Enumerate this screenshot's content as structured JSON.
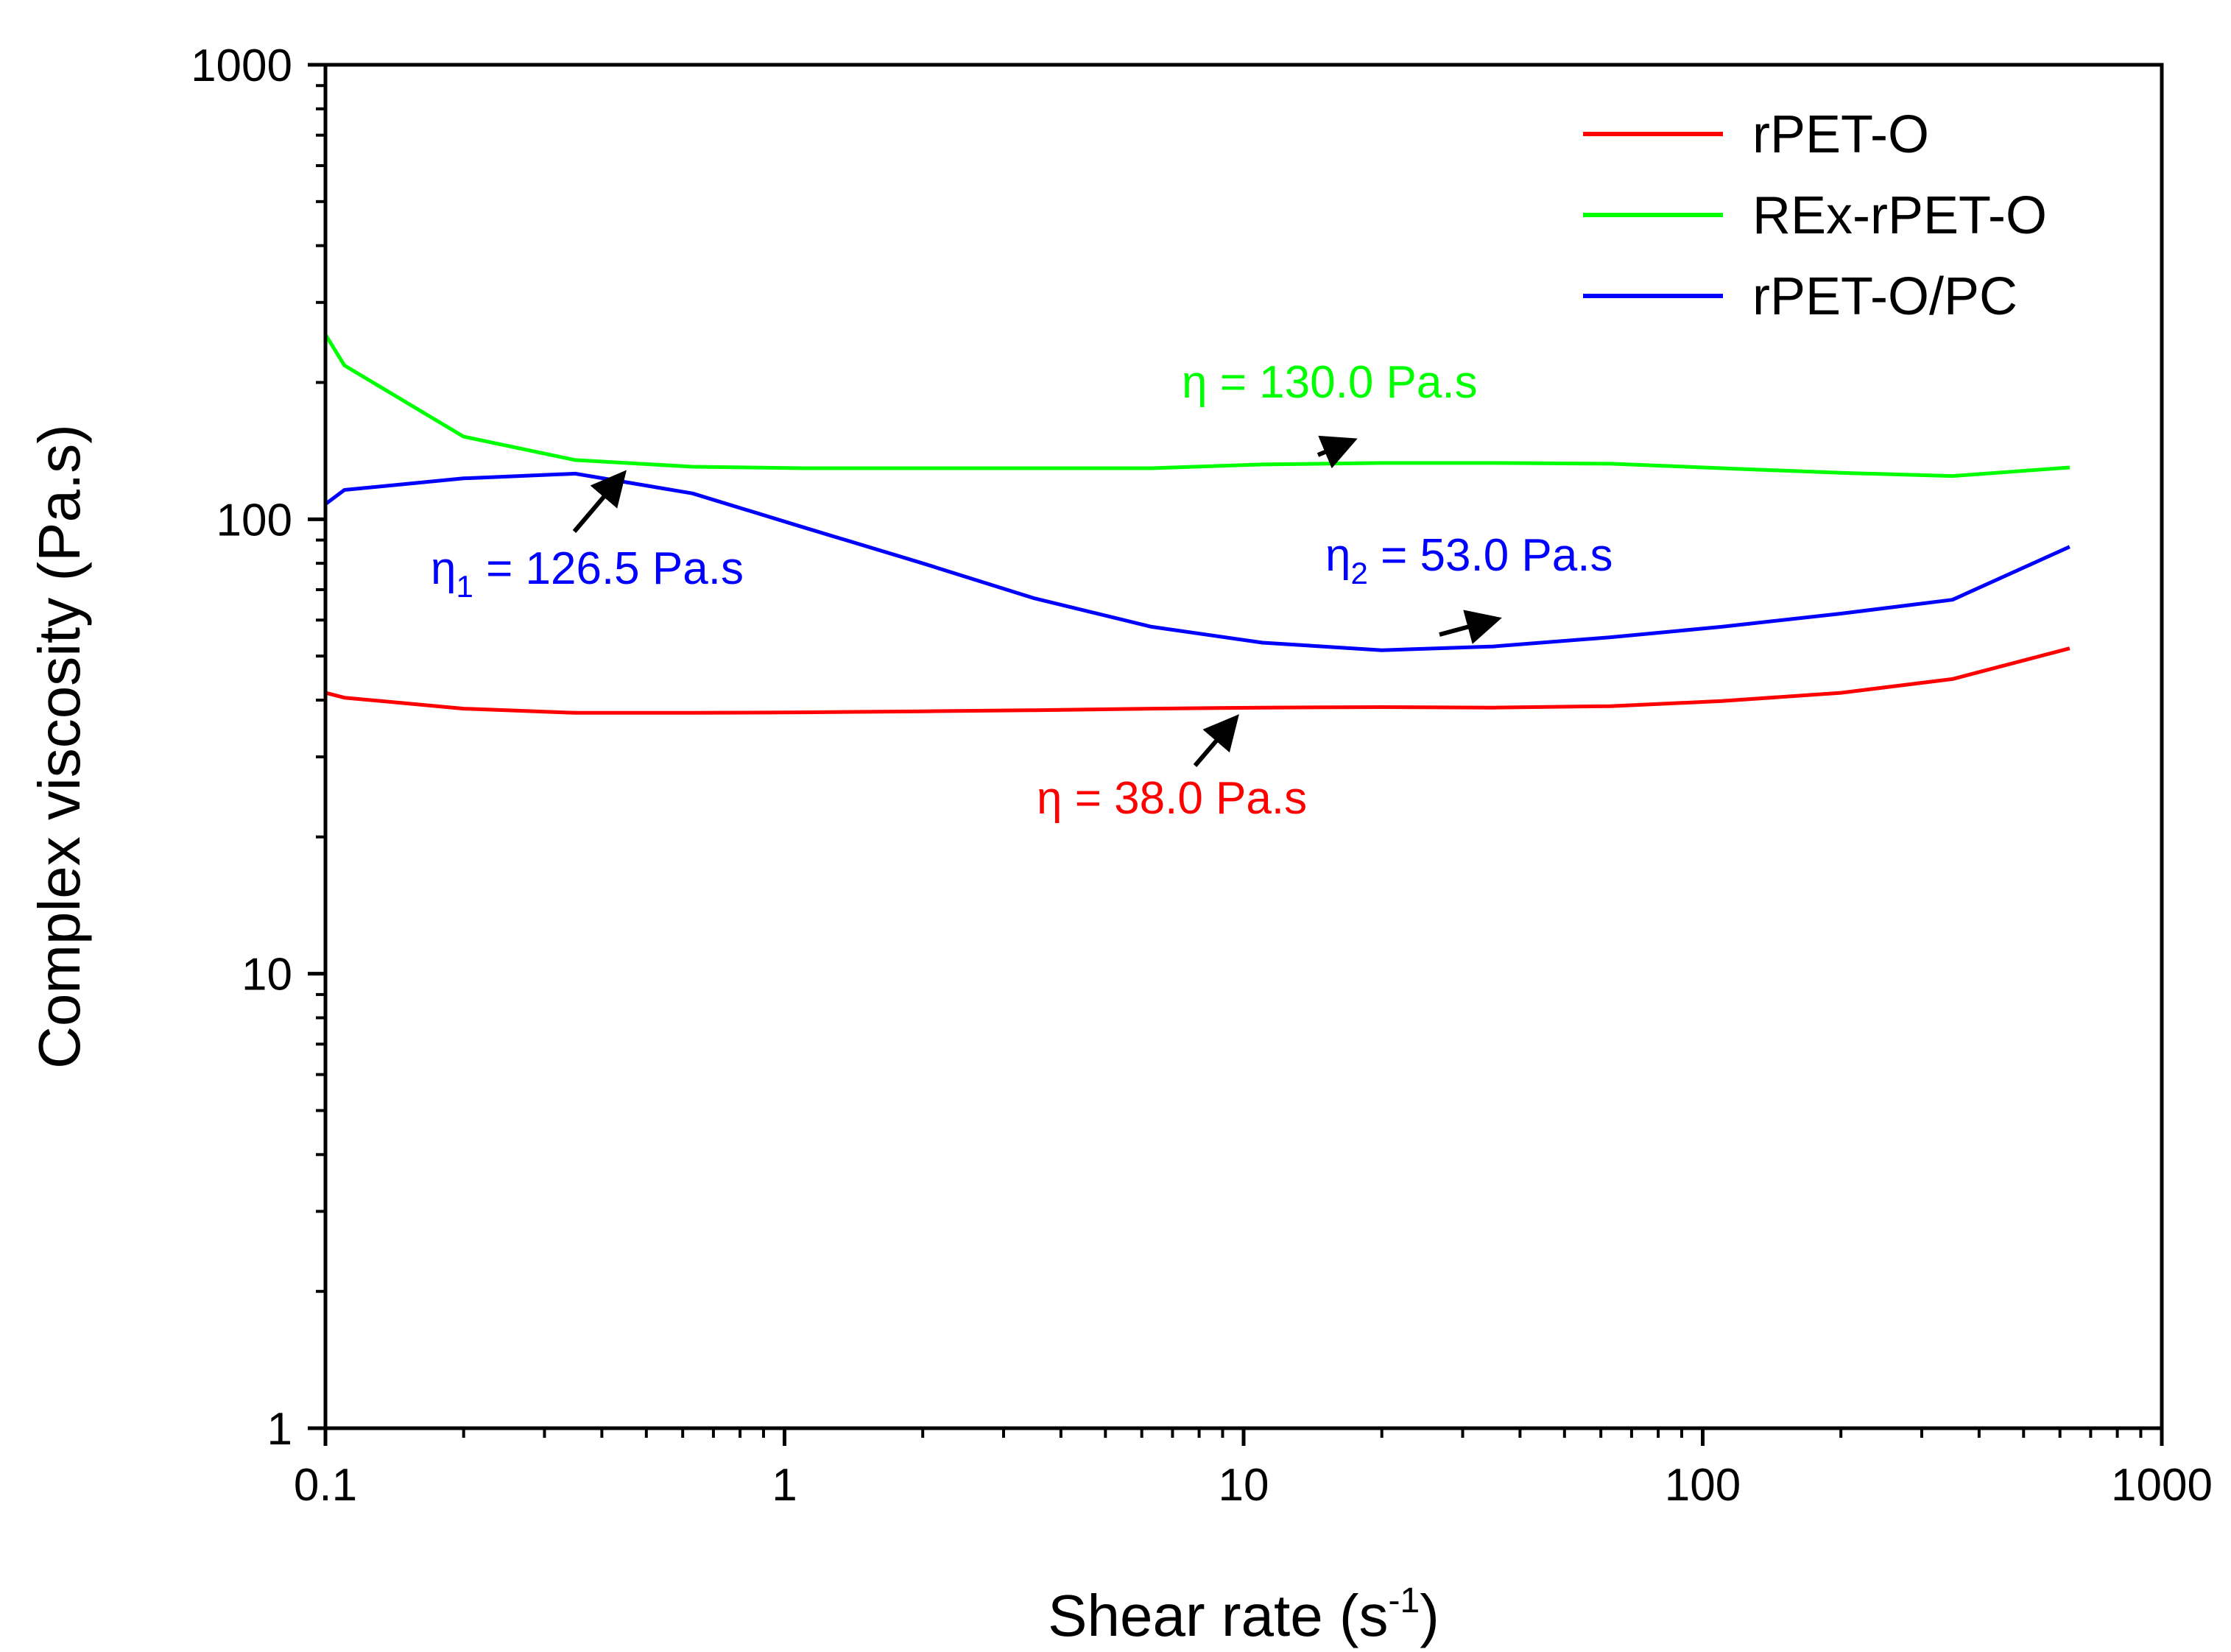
{
  "chart_data": {
    "type": "line",
    "xscale": "log",
    "yscale": "log",
    "xlim": [
      0.1,
      1000
    ],
    "ylim": [
      1,
      1000
    ],
    "xticks": [
      0.1,
      1,
      10,
      100,
      1000
    ],
    "xtick_labels": [
      "0.1",
      "1",
      "10",
      "100",
      "1000"
    ],
    "yticks": [
      1,
      10,
      100,
      1000
    ],
    "ytick_labels": [
      "1",
      "10",
      "100",
      "1000"
    ],
    "xlabel": {
      "main": "Shear rate (s",
      "sup": "-1",
      "end": ")"
    },
    "ylabel": "Complex viscosity (Pa.s)",
    "legend_position": "top-right",
    "series": [
      {
        "name": "rPET-O",
        "color": "#ff0000",
        "x": [
          0.1,
          0.11,
          0.2,
          0.35,
          0.63,
          1.1,
          2,
          3.5,
          6.3,
          11,
          20,
          35,
          63,
          110,
          200,
          350,
          630
        ],
        "y": [
          41.5,
          40.5,
          38.3,
          37.5,
          37.5,
          37.6,
          37.8,
          38.0,
          38.3,
          38.5,
          38.6,
          38.5,
          38.8,
          39.8,
          41.5,
          44.5,
          52.0
        ]
      },
      {
        "name": "REx-rPET-O",
        "color": "#00ff00",
        "x": [
          0.1,
          0.11,
          0.2,
          0.35,
          0.63,
          1.1,
          2,
          3.5,
          6.3,
          11,
          20,
          35,
          63,
          110,
          200,
          350,
          630
        ],
        "y": [
          255,
          218,
          152,
          135,
          130.5,
          129.5,
          129.5,
          129.5,
          129.5,
          132,
          133,
          133,
          132.5,
          129.5,
          126.5,
          124.5,
          130
        ]
      },
      {
        "name": "rPET-O/PC",
        "color": "#0000ff",
        "x": [
          0.1,
          0.11,
          0.2,
          0.35,
          0.63,
          1.1,
          2,
          3.5,
          6.3,
          11,
          20,
          35,
          63,
          110,
          200,
          350,
          630
        ],
        "y": [
          108,
          116,
          123,
          126,
          114,
          96,
          80,
          67,
          58,
          53.5,
          51.5,
          52.5,
          55,
          58,
          62,
          66.5,
          87
        ]
      }
    ],
    "annotations": [
      {
        "id": "eta-green",
        "symbol": "η",
        "sub": "",
        "text": " = 130.0 Pa.s",
        "color": "#00ff00",
        "arrow_to": [
          17,
          148
        ]
      },
      {
        "id": "eta1-blue",
        "symbol": "η",
        "sub": "1",
        "text": " = 126.5 Pa.s",
        "color": "#0000ff",
        "arrow_to": [
          0.44,
          124
        ]
      },
      {
        "id": "eta2-blue",
        "symbol": "η",
        "sub": "2",
        "text": " = 53.0 Pa.s",
        "color": "#0000ff",
        "arrow_to": [
          35,
          60
        ]
      },
      {
        "id": "eta-red",
        "symbol": "η",
        "sub": "",
        "text": " = 38.0 Pa.s",
        "color": "#ff0000",
        "arrow_to": [
          9.5,
          36
        ]
      }
    ]
  }
}
